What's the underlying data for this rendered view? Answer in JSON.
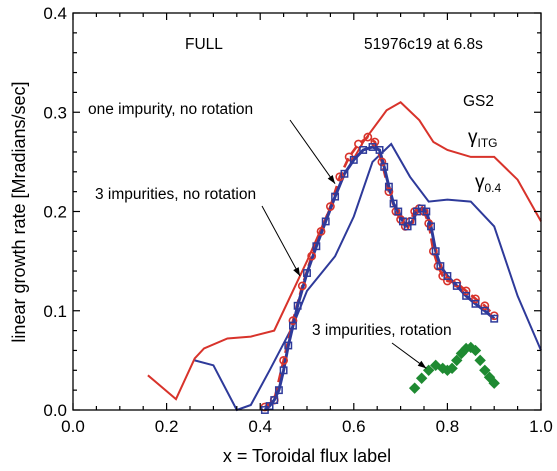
{
  "chart_data": {
    "type": "line",
    "title": "",
    "xlabel": "x = Toroidal flux label",
    "ylabel": "linear growth rate [Mradians/sec]",
    "xlim": [
      0.0,
      1.0
    ],
    "ylim": [
      0.0,
      0.4
    ],
    "xticks": [
      "0.0",
      "0.2",
      "0.4",
      "0.6",
      "0.8",
      "1.0"
    ],
    "yticks": [
      "0.0",
      "0.1",
      "0.2",
      "0.3",
      "0.4"
    ],
    "grid": false,
    "colors": {
      "red": "#d8332b",
      "blue": "#2e3a9a",
      "green": "#1f8a32",
      "black": "#000000"
    },
    "series": [
      {
        "style": "solid red line",
        "color": "#d8332b",
        "x": [
          0.16,
          0.22,
          0.26,
          0.28,
          0.33,
          0.38,
          0.43,
          0.5,
          0.58,
          0.62,
          0.67,
          0.7,
          0.74,
          0.77,
          0.8,
          0.85,
          0.9,
          0.95,
          1.0
        ],
        "y": [
          0.035,
          0.011,
          0.052,
          0.062,
          0.072,
          0.074,
          0.08,
          0.15,
          0.237,
          0.27,
          0.302,
          0.31,
          0.292,
          0.27,
          0.262,
          0.255,
          0.255,
          0.232,
          0.19
        ]
      },
      {
        "style": "solid blue line",
        "color": "#2e3a9a",
        "x": [
          0.26,
          0.3,
          0.35,
          0.38,
          0.42,
          0.47,
          0.5,
          0.56,
          0.6,
          0.64,
          0.68,
          0.72,
          0.76,
          0.8,
          0.85,
          0.9,
          0.95,
          1.0
        ],
        "y": [
          0.05,
          0.045,
          0.0,
          0.005,
          0.04,
          0.085,
          0.12,
          0.155,
          0.195,
          0.25,
          0.268,
          0.235,
          0.21,
          0.212,
          0.21,
          0.185,
          0.115,
          0.06
        ]
      },
      {
        "style": "dashed red with open circles",
        "color": "#d8332b",
        "x": [
          0.41,
          0.43,
          0.45,
          0.47,
          0.49,
          0.51,
          0.53,
          0.55,
          0.57,
          0.59,
          0.61,
          0.63,
          0.645,
          0.66,
          0.675,
          0.69,
          0.7,
          0.71,
          0.72,
          0.73,
          0.74,
          0.75,
          0.76,
          0.77,
          0.78,
          0.79,
          0.8,
          0.82,
          0.84,
          0.86,
          0.88,
          0.9
        ],
        "y": [
          0.003,
          0.01,
          0.05,
          0.09,
          0.125,
          0.155,
          0.18,
          0.205,
          0.235,
          0.255,
          0.268,
          0.275,
          0.27,
          0.25,
          0.22,
          0.2,
          0.192,
          0.185,
          0.19,
          0.2,
          0.203,
          0.2,
          0.188,
          0.16,
          0.145,
          0.135,
          0.13,
          0.128,
          0.12,
          0.112,
          0.105,
          0.095
        ]
      },
      {
        "style": "solid blue with open squares",
        "color": "#2e3a9a",
        "x": [
          0.41,
          0.42,
          0.43,
          0.44,
          0.45,
          0.46,
          0.47,
          0.48,
          0.5,
          0.52,
          0.54,
          0.56,
          0.58,
          0.6,
          0.62,
          0.64,
          0.655,
          0.665,
          0.675,
          0.685,
          0.695,
          0.705,
          0.715,
          0.725,
          0.735,
          0.745,
          0.755,
          0.765,
          0.775,
          0.785,
          0.8,
          0.82,
          0.84,
          0.86,
          0.88,
          0.9
        ],
        "y": [
          0.0,
          0.004,
          0.01,
          0.02,
          0.04,
          0.065,
          0.085,
          0.105,
          0.138,
          0.165,
          0.19,
          0.215,
          0.238,
          0.252,
          0.262,
          0.265,
          0.262,
          0.245,
          0.225,
          0.208,
          0.2,
          0.19,
          0.185,
          0.19,
          0.2,
          0.203,
          0.2,
          0.185,
          0.16,
          0.145,
          0.135,
          0.125,
          0.115,
          0.107,
          0.1,
          0.092
        ]
      },
      {
        "style": "green diamonds",
        "color": "#1f8a32",
        "x": [
          0.73,
          0.745,
          0.76,
          0.775,
          0.79,
          0.8,
          0.81,
          0.82,
          0.83,
          0.84,
          0.85,
          0.86,
          0.87,
          0.88,
          0.89,
          0.9
        ],
        "y": [
          0.022,
          0.032,
          0.04,
          0.045,
          0.042,
          0.04,
          0.042,
          0.05,
          0.057,
          0.062,
          0.063,
          0.06,
          0.05,
          0.04,
          0.033,
          0.027
        ]
      }
    ],
    "annotations": [
      {
        "text": "FULL"
      },
      {
        "text": "51976c19 at 6.8s"
      },
      {
        "text": "GS2"
      },
      {
        "text": "γ",
        "sub": "ITG"
      },
      {
        "text": "γ",
        "sub": "0.4"
      },
      {
        "text": "one impurity, no rotation",
        "arrow_to": [
          0.56,
          0.228
        ]
      },
      {
        "text": "3 impurities, no rotation",
        "arrow_to": [
          0.485,
          0.135
        ]
      },
      {
        "text": "3 impurities, rotation",
        "arrow_to": [
          0.755,
          0.042
        ]
      }
    ]
  }
}
